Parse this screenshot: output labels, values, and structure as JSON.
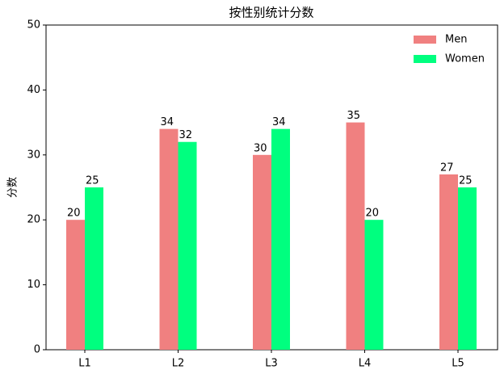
{
  "chart_data": {
    "type": "bar",
    "title": "按性别统计分数",
    "y_label": "分数",
    "categories": [
      "L1",
      "L2",
      "L3",
      "L4",
      "L5"
    ],
    "series": [
      {
        "name": "Men",
        "color": "#f08080",
        "values": [
          20,
          34,
          30,
          35,
          27
        ]
      },
      {
        "name": "Women",
        "color": "#00ff7f",
        "values": [
          25,
          32,
          34,
          20,
          25
        ]
      }
    ],
    "ylim": [
      0,
      50
    ],
    "yticks": [
      0,
      10,
      20,
      30,
      40,
      50
    ],
    "grid": false,
    "legend": "upper right"
  }
}
